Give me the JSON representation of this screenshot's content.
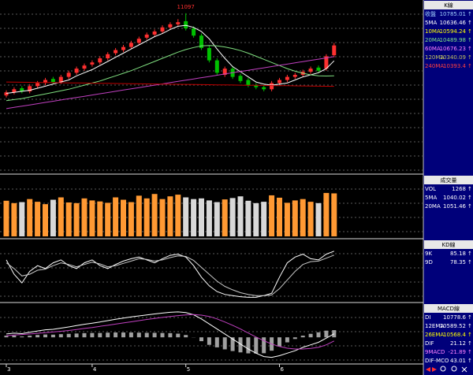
{
  "chart_data": [
    {
      "type": "candlestick",
      "panel_title": "K線",
      "ylim": [
        9560,
        11195
      ],
      "peak": 11097,
      "up_color": "#ff3030",
      "down_color": "#00c000",
      "open": [
        10300,
        10330,
        10370,
        10340,
        10390,
        10420,
        10460,
        10430,
        10480,
        10520,
        10560,
        10600,
        10620,
        10660,
        10710,
        10740,
        10770,
        10810,
        10860,
        10890,
        10920,
        10960,
        10990,
        11020,
        10950,
        10880,
        10760,
        10640,
        10500,
        10560,
        10490,
        10450,
        10400,
        10380,
        10360,
        10420,
        10450,
        10480,
        10500,
        10530,
        10570,
        10560,
        10690
      ],
      "high": [
        10350,
        10380,
        10390,
        10410,
        10440,
        10470,
        10480,
        10500,
        10540,
        10580,
        10610,
        10640,
        10680,
        10720,
        10760,
        10790,
        10830,
        10870,
        10910,
        10940,
        10980,
        11010,
        11040,
        11097,
        10970,
        10900,
        10780,
        10660,
        10580,
        10580,
        10510,
        10470,
        10420,
        10400,
        10440,
        10470,
        10500,
        10520,
        10550,
        10580,
        10590,
        10700,
        10810
      ],
      "low": [
        10280,
        10310,
        10320,
        10320,
        10370,
        10400,
        10410,
        10410,
        10460,
        10500,
        10540,
        10580,
        10600,
        10640,
        10690,
        10720,
        10750,
        10790,
        10840,
        10870,
        10900,
        10940,
        10970,
        10930,
        10860,
        10740,
        10620,
        10500,
        10480,
        10460,
        10420,
        10380,
        10360,
        10340,
        10340,
        10400,
        10430,
        10460,
        10480,
        10510,
        10520,
        10540,
        10670
      ],
      "close": [
        10330,
        10360,
        10340,
        10390,
        10420,
        10450,
        10430,
        10480,
        10520,
        10560,
        10590,
        10620,
        10660,
        10700,
        10740,
        10770,
        10810,
        10850,
        10890,
        10920,
        10960,
        10990,
        11010,
        10950,
        10880,
        10760,
        10640,
        10520,
        10560,
        10480,
        10440,
        10400,
        10380,
        10360,
        10420,
        10450,
        10480,
        10500,
        10530,
        10560,
        10540,
        10680,
        10785
      ],
      "series": [
        {
          "color": "#ffffff",
          "values": [
            10320,
            10330,
            10340,
            10350,
            10370,
            10390,
            10410,
            10430,
            10450,
            10490,
            10520,
            10550,
            10590,
            10630,
            10670,
            10710,
            10750,
            10790,
            10830,
            10870,
            10900,
            10940,
            10970,
            10980,
            10960,
            10920,
            10850,
            10750,
            10660,
            10580,
            10530,
            10480,
            10430,
            10410,
            10400,
            10410,
            10420,
            10450,
            10480,
            10500,
            10520,
            10560,
            10636
          ]
        },
        {
          "color": "#80e080",
          "values": [
            10250,
            10260,
            10270,
            10285,
            10300,
            10315,
            10330,
            10345,
            10360,
            10380,
            10400,
            10420,
            10440,
            10465,
            10490,
            10515,
            10540,
            10570,
            10600,
            10630,
            10660,
            10690,
            10720,
            10745,
            10765,
            10780,
            10785,
            10780,
            10770,
            10755,
            10735,
            10710,
            10680,
            10650,
            10620,
            10590,
            10560,
            10535,
            10515,
            10500,
            10490,
            10488,
            10490
          ]
        },
        {
          "color": "#c040c0",
          "values": [
            10172,
            10184,
            10196,
            10208,
            10220,
            10232,
            10244,
            10256,
            10268,
            10280,
            10292,
            10304,
            10316,
            10328,
            10340,
            10352,
            10364,
            10376,
            10388,
            10400,
            10412,
            10424,
            10436,
            10448,
            10460,
            10472,
            10484,
            10496,
            10508,
            10520,
            10532,
            10544,
            10556,
            10568,
            10580,
            10592,
            10604,
            10616,
            10628,
            10640,
            10652,
            10664,
            10676
          ]
        },
        {
          "color": "#c00000",
          "values": [
            10430,
            10429,
            10428,
            10427,
            10426,
            10425,
            10424,
            10423,
            10422,
            10421,
            10420,
            10419,
            10418,
            10417,
            10416,
            10415,
            10414,
            10413,
            10412,
            10411,
            10410,
            10409,
            10408,
            10407,
            10406,
            10405,
            10404,
            10403,
            10402,
            10401,
            10400,
            10399,
            10398,
            10397,
            10396,
            10395,
            10394,
            10393,
            10392,
            10391,
            10390,
            10389,
            10388
          ]
        }
      ],
      "readouts": [
        {
          "name": "收盤",
          "value": 10785.01,
          "trend": "↑",
          "color": "#a0d0ff"
        },
        {
          "name": "5MA",
          "value": 10636.46,
          "trend": "↑",
          "color": "#ffffff"
        },
        {
          "name": "10MA",
          "value": 10594.24,
          "trend": "↑",
          "color": "#ffff00"
        },
        {
          "name": "20MA",
          "value": 10489.98,
          "trend": "↑",
          "color": "#80e080"
        },
        {
          "name": "60MA",
          "value": 10676.23,
          "trend": "↑",
          "color": "#ff80ff"
        },
        {
          "name": "120MA",
          "value": 10340.09,
          "trend": "↑",
          "color": "#c0c060"
        },
        {
          "name": "240MA",
          "value": 10393.4,
          "trend": "↑",
          "color": "#ff4040"
        }
      ]
    },
    {
      "type": "bar",
      "panel_title": "成交量",
      "ylim": [
        0,
        1720
      ],
      "up_color": "#ff9933",
      "down_color": "#d8d8d8",
      "values": [
        1050,
        980,
        1010,
        1100,
        1020,
        950,
        1080,
        1150,
        1000,
        980,
        1120,
        1060,
        1030,
        990,
        1150,
        1080,
        1010,
        1200,
        1120,
        1250,
        1100,
        1180,
        1230,
        1150,
        1100,
        1120,
        1060,
        1010,
        1090,
        1130,
        1180,
        1050,
        980,
        1020,
        1210,
        1140,
        990,
        1060,
        1100,
        1020,
        980,
        1280,
        1268
      ],
      "readouts": [
        {
          "name": "VOL",
          "value": 1268,
          "trend": "↑",
          "color": "#ffffff"
        },
        {
          "name": "5MA",
          "value": 1040.02,
          "trend": "↑",
          "color": "#ffffff"
        },
        {
          "name": "20MA",
          "value": 1051.46,
          "trend": "↑",
          "color": "#ffffff"
        }
      ]
    },
    {
      "type": "line",
      "panel_title": "KD線",
      "ylim": [
        0,
        100
      ],
      "series": [
        {
          "color": "#ffffff",
          "values": [
            70,
            45,
            30,
            50,
            60,
            55,
            65,
            70,
            60,
            55,
            65,
            70,
            60,
            55,
            62,
            68,
            72,
            75,
            70,
            65,
            72,
            78,
            80,
            75,
            60,
            40,
            25,
            15,
            10,
            8,
            6,
            5,
            5,
            8,
            12,
            40,
            65,
            75,
            80,
            72,
            70,
            80,
            85.18
          ]
        },
        {
          "color": "#c8c8c8",
          "values": [
            65,
            55,
            42,
            45,
            52,
            54,
            60,
            65,
            62,
            58,
            62,
            66,
            63,
            58,
            60,
            64,
            68,
            72,
            71,
            68,
            70,
            74,
            77,
            76,
            69,
            57,
            45,
            33,
            24,
            18,
            13,
            10,
            8,
            8,
            9,
            20,
            35,
            50,
            62,
            67,
            68,
            73,
            78.35
          ]
        }
      ],
      "readouts": [
        {
          "name": "9K",
          "value": 85.18,
          "trend": "↑",
          "color": "#ffffff"
        },
        {
          "name": "9D",
          "value": 78.35,
          "trend": "↑",
          "color": "#ffffff"
        }
      ]
    },
    {
      "type": "line",
      "panel_title": "MACD線",
      "ylim": [
        -150,
        180
      ],
      "histogram_color": "#a0a0a0",
      "categories": [
        "3",
        null,
        null,
        null,
        null,
        null,
        null,
        null,
        null,
        null,
        null,
        "4",
        null,
        null,
        null,
        null,
        null,
        null,
        null,
        null,
        null,
        null,
        null,
        "5",
        null,
        null,
        null,
        null,
        null,
        null,
        null,
        null,
        null,
        null,
        null,
        "6",
        null,
        null,
        null,
        null,
        null,
        null,
        null
      ],
      "histogram": [
        10,
        11,
        5,
        10,
        14,
        17,
        16,
        19,
        21,
        23,
        25,
        26,
        26,
        28,
        29,
        29,
        29,
        28,
        27,
        27,
        26,
        25,
        22,
        14,
        -1,
        -23,
        -45,
        -60,
        -72,
        -82,
        -90,
        -96,
        -97,
        -95,
        -80,
        -55,
        -30,
        -10,
        10,
        21,
        30,
        40,
        43.01
      ],
      "series": [
        {
          "color": "#ffffff",
          "values": [
            20,
            25,
            22,
            30,
            38,
            45,
            48,
            55,
            62,
            70,
            78,
            85,
            92,
            100,
            108,
            115,
            122,
            128,
            134,
            140,
            145,
            150,
            152,
            148,
            135,
            110,
            80,
            50,
            20,
            -10,
            -40,
            -70,
            -95,
            -115,
            -120,
            -110,
            -95,
            -80,
            -60,
            -45,
            -30,
            -5,
            21.12
          ]
        },
        {
          "color": "#c040c0",
          "values": [
            10,
            14,
            17,
            20,
            24,
            28,
            32,
            36,
            41,
            47,
            53,
            59,
            66,
            72,
            79,
            86,
            93,
            100,
            107,
            113,
            119,
            125,
            130,
            134,
            136,
            133,
            125,
            110,
            92,
            72,
            50,
            26,
            2,
            -20,
            -40,
            -55,
            -65,
            -70,
            -70,
            -66,
            -60,
            -45,
            -21.89
          ]
        }
      ],
      "readouts": [
        {
          "name": "DI",
          "value": 10778.6,
          "trend": "↑",
          "color": "#ffffff"
        },
        {
          "name": "12EMA",
          "value": 10589.52,
          "trend": "↑",
          "color": "#ffffff"
        },
        {
          "name": "26EMA",
          "value": 10568.4,
          "trend": "↑",
          "color": "#ffff00"
        },
        {
          "name": "DIF",
          "value": 21.12,
          "trend": "↑",
          "color": "#ffffff"
        },
        {
          "name": "9MACD",
          "value": -21.89,
          "trend": "↑",
          "color": "#ff80ff"
        },
        {
          "name": "DIF-MCO",
          "value": 43.01,
          "trend": "↑",
          "color": "#ffffff"
        }
      ]
    }
  ]
}
